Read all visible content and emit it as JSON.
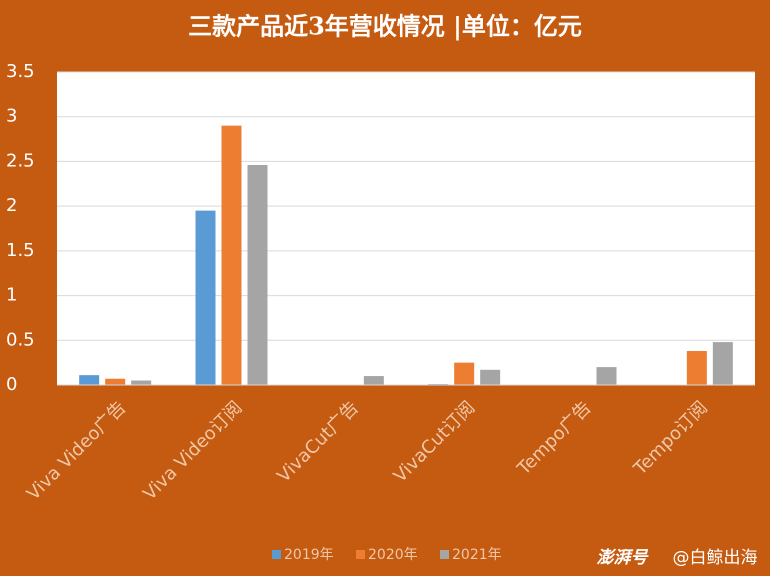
{
  "chart_data": {
    "type": "bar",
    "title": "三款产品近3年营收情况 |单位：亿元",
    "categories": [
      "Viva Video广告",
      "Viva Video订阅",
      "VivaCut广告",
      "VivaCut订阅",
      "Tempo广告",
      "Tempo订阅"
    ],
    "series": [
      {
        "name": "2019年",
        "color": "#5b9bd5",
        "values": [
          0.11,
          1.95,
          0,
          0.01,
          0,
          0
        ]
      },
      {
        "name": "2020年",
        "color": "#ed7d31",
        "values": [
          0.07,
          2.9,
          0,
          0.25,
          0,
          0.38
        ]
      },
      {
        "name": "2021年",
        "color": "#a5a5a5",
        "values": [
          0.05,
          2.46,
          0.1,
          0.17,
          0.2,
          0.48
        ]
      }
    ],
    "ylim": [
      0,
      3.5
    ],
    "yticks": [
      0,
      0.5,
      1,
      1.5,
      2,
      2.5,
      3,
      3.5
    ],
    "grid": true,
    "legend": "bottom",
    "watermark": [
      "澎湃号",
      "@白鲸出海"
    ]
  }
}
